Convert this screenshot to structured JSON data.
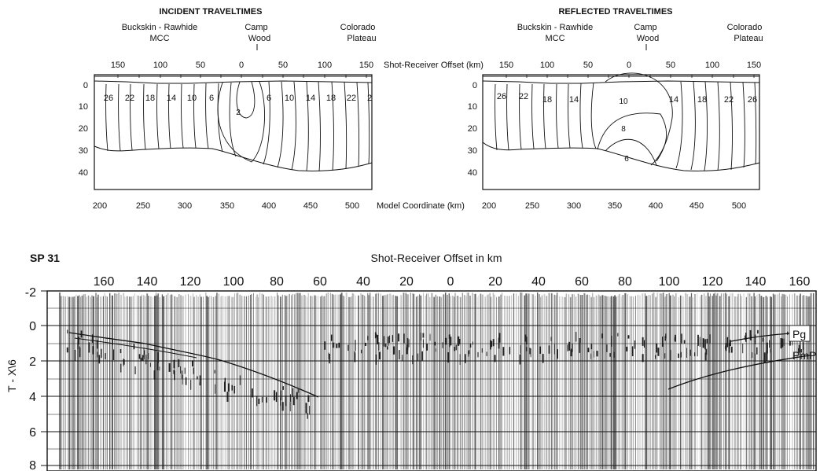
{
  "panels": [
    {
      "id": "incident",
      "title": "INCIDENT TRAVELTIMES",
      "sites": [
        {
          "name": "Buckskin - Rawhide",
          "sub": "MCC"
        },
        {
          "name": "Camp",
          "sub": "Wood"
        },
        {
          "name": "Colorado",
          "sub": "Plateau"
        }
      ],
      "offset_ticks": [
        "150",
        "100",
        "50",
        "0",
        "50",
        "100",
        "150"
      ],
      "depth_ticks": [
        "0",
        "10",
        "20",
        "30",
        "40"
      ],
      "coord_ticks": [
        "200",
        "250",
        "300",
        "350",
        "400",
        "450",
        "500"
      ],
      "contour_labels": [
        "26",
        "22",
        "18",
        "14",
        "10",
        "6",
        "2",
        "6",
        "10",
        "14",
        "18",
        "22",
        "2"
      ]
    },
    {
      "id": "reflected",
      "title": "REFLECTED TRAVELTIMES",
      "sites": [
        {
          "name": "Buckskin - Rawhide",
          "sub": "MCC"
        },
        {
          "name": "Camp",
          "sub": "Wood"
        },
        {
          "name": "Colorado",
          "sub": "Plateau"
        }
      ],
      "offset_ticks": [
        "150",
        "100",
        "50",
        "0",
        "50",
        "100",
        "150"
      ],
      "depth_ticks": [
        "0",
        "10",
        "20",
        "30",
        "40"
      ],
      "coord_ticks": [
        "200",
        "250",
        "300",
        "350",
        "400",
        "450",
        "500"
      ],
      "contour_labels": [
        "26",
        "22",
        "18",
        "14",
        "10",
        "8",
        "6",
        "14",
        "18",
        "22",
        "26"
      ]
    }
  ],
  "shared_axes": {
    "offset_label": "Shot-Receiver Offset (km)",
    "coord_label": "Model Coordinate (km)"
  },
  "seismic": {
    "sp_label": "SP 31",
    "title": "Shot-Receiver Offset in km",
    "x_ticks": [
      "160",
      "140",
      "120",
      "100",
      "80",
      "60",
      "40",
      "20",
      "0",
      "20",
      "40",
      "60",
      "80",
      "100",
      "120",
      "140",
      "160"
    ],
    "y_ticks": [
      "-2",
      "0",
      "2",
      "4",
      "6",
      "8"
    ],
    "y_label": "T - X\\6",
    "phases": [
      "Pg",
      "PmP"
    ]
  }
}
